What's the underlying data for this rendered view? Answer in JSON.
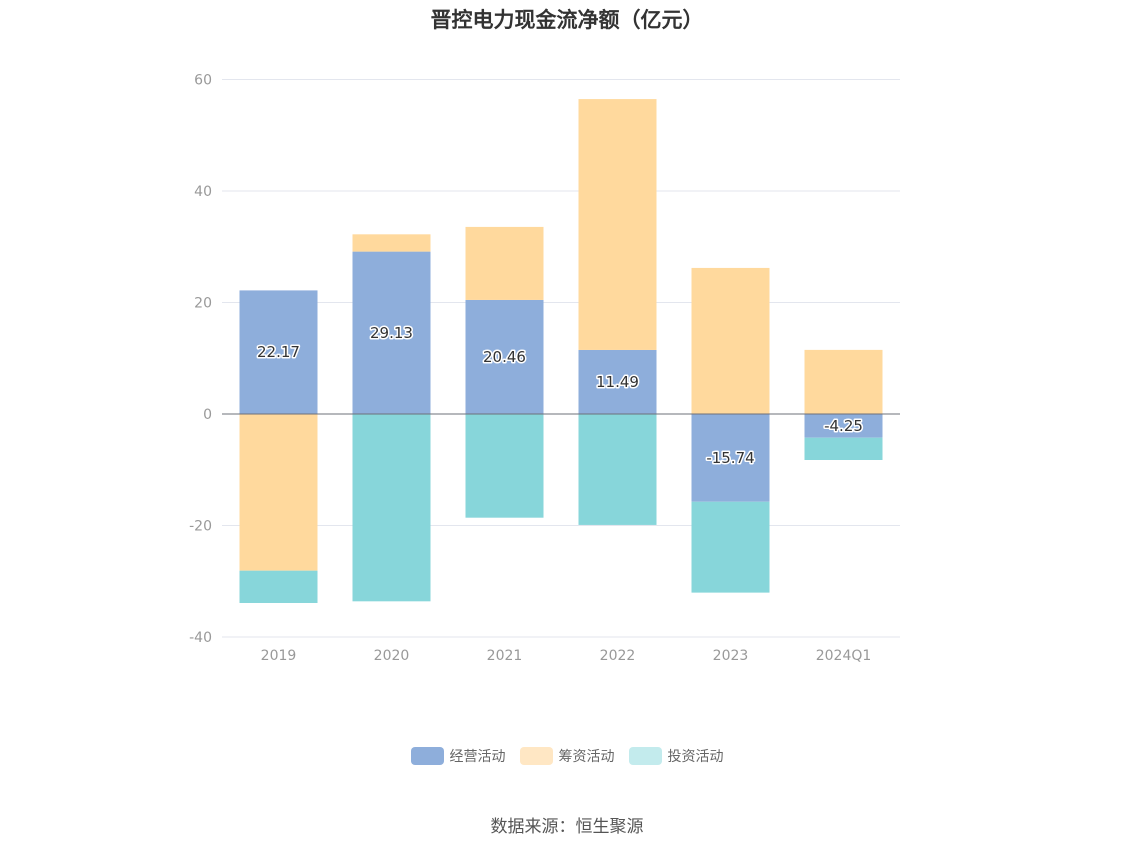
{
  "chart_data": {
    "type": "bar",
    "stacked": true,
    "title": "晋控电力现金流净额（亿元）",
    "xlabel": "",
    "ylabel": "",
    "categories": [
      "2019",
      "2020",
      "2021",
      "2022",
      "2023",
      "2024Q1"
    ],
    "ylim": [
      -40,
      60
    ],
    "yticks": [
      60,
      40,
      20,
      0,
      -20,
      -40
    ],
    "grid": true,
    "legend_position": "bottom",
    "series": [
      {
        "name": "经营活动",
        "color": "#8EAEDB",
        "values": [
          22.17,
          29.13,
          20.46,
          11.49,
          -15.74,
          -4.25
        ],
        "labels": [
          "22.17",
          "29.13",
          "20.46",
          "11.49",
          "-15.74",
          "-4.25"
        ]
      },
      {
        "name": "筹资活动",
        "color": "#FFD99D",
        "legend_color": "#FFE7C4",
        "values": [
          -28.1,
          3.1,
          13.1,
          45.0,
          26.2,
          11.5
        ]
      },
      {
        "name": "投资活动",
        "color": "#87D6DA",
        "legend_color": "#C3EBED",
        "values": [
          -5.8,
          -33.6,
          -18.6,
          -19.9,
          -16.3,
          -4.0
        ]
      }
    ]
  },
  "source_note": "数据来源：恒生聚源"
}
